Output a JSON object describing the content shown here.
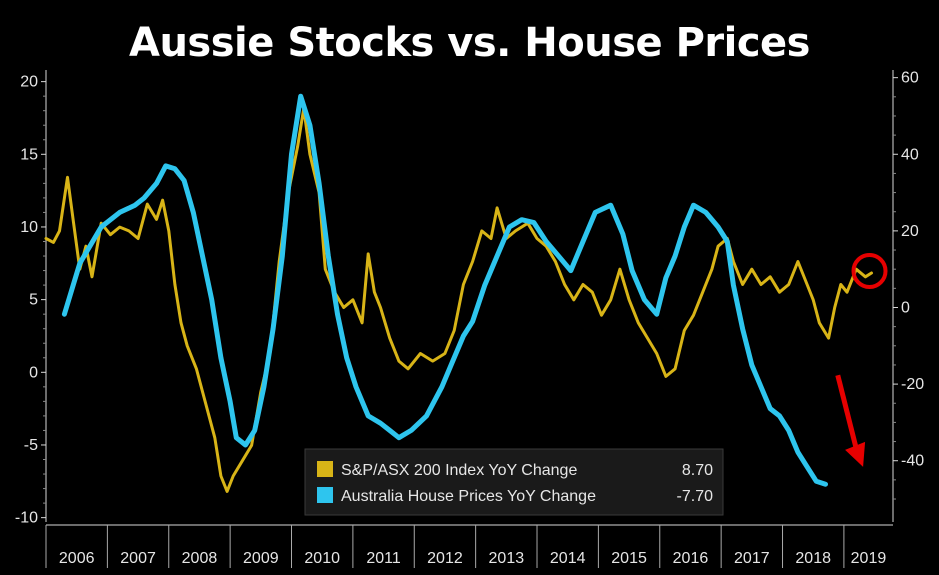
{
  "chart_data": {
    "type": "line",
    "title": "Aussie Stocks vs. House Prices",
    "x_ticks": [
      "2006",
      "2007",
      "2008",
      "2009",
      "2010",
      "2011",
      "2012",
      "2013",
      "2014",
      "2015",
      "2016",
      "2017",
      "2018",
      "2019"
    ],
    "xlim": [
      2006.0,
      2019.8
    ],
    "left_axis": {
      "ylim": [
        -10.3,
        20.8
      ],
      "ticks": [
        20,
        15,
        10,
        5,
        0,
        -5,
        -10
      ],
      "tick_labels": [
        "20",
        "15",
        "10",
        "5",
        "0",
        "-5",
        "-10"
      ]
    },
    "right_axis": {
      "ylim": [
        -56,
        62
      ],
      "ticks": [
        60,
        40,
        20,
        0,
        -20,
        -40
      ],
      "tick_labels": [
        "60",
        "40",
        "20",
        "0",
        "-20",
        "-40"
      ]
    },
    "series": [
      {
        "name": "S&P/ASX 200 Index YoY Change",
        "axis": "right",
        "color": "#d8b417",
        "last_value": "8.70",
        "points": [
          [
            2006.0,
            18
          ],
          [
            2006.12,
            17
          ],
          [
            2006.22,
            20
          ],
          [
            2006.35,
            34
          ],
          [
            2006.45,
            22
          ],
          [
            2006.55,
            10
          ],
          [
            2006.65,
            16
          ],
          [
            2006.75,
            8
          ],
          [
            2006.9,
            22
          ],
          [
            2007.05,
            19
          ],
          [
            2007.2,
            21
          ],
          [
            2007.35,
            20
          ],
          [
            2007.5,
            18
          ],
          [
            2007.65,
            27
          ],
          [
            2007.8,
            23
          ],
          [
            2007.9,
            28
          ],
          [
            2008.0,
            20
          ],
          [
            2008.1,
            6
          ],
          [
            2008.2,
            -4
          ],
          [
            2008.3,
            -10
          ],
          [
            2008.45,
            -16
          ],
          [
            2008.6,
            -25
          ],
          [
            2008.75,
            -34
          ],
          [
            2008.85,
            -44
          ],
          [
            2008.95,
            -48
          ],
          [
            2009.05,
            -44
          ],
          [
            2009.2,
            -40
          ],
          [
            2009.35,
            -36
          ],
          [
            2009.5,
            -22
          ],
          [
            2009.65,
            -12
          ],
          [
            2009.8,
            12
          ],
          [
            2009.95,
            30
          ],
          [
            2010.1,
            42
          ],
          [
            2010.2,
            52
          ],
          [
            2010.3,
            40
          ],
          [
            2010.45,
            30
          ],
          [
            2010.55,
            10
          ],
          [
            2010.7,
            4
          ],
          [
            2010.85,
            0
          ],
          [
            2011.0,
            2
          ],
          [
            2011.15,
            -4
          ],
          [
            2011.25,
            14
          ],
          [
            2011.35,
            4
          ],
          [
            2011.45,
            0
          ],
          [
            2011.6,
            -8
          ],
          [
            2011.75,
            -14
          ],
          [
            2011.9,
            -16
          ],
          [
            2012.1,
            -12
          ],
          [
            2012.3,
            -14
          ],
          [
            2012.5,
            -12
          ],
          [
            2012.65,
            -6
          ],
          [
            2012.8,
            6
          ],
          [
            2012.95,
            12
          ],
          [
            2013.1,
            20
          ],
          [
            2013.25,
            18
          ],
          [
            2013.35,
            26
          ],
          [
            2013.5,
            18
          ],
          [
            2013.65,
            20
          ],
          [
            2013.85,
            22
          ],
          [
            2014.0,
            18
          ],
          [
            2014.15,
            16
          ],
          [
            2014.3,
            12
          ],
          [
            2014.45,
            6
          ],
          [
            2014.6,
            2
          ],
          [
            2014.75,
            6
          ],
          [
            2014.9,
            4
          ],
          [
            2015.05,
            -2
          ],
          [
            2015.2,
            2
          ],
          [
            2015.35,
            10
          ],
          [
            2015.5,
            2
          ],
          [
            2015.65,
            -4
          ],
          [
            2015.8,
            -8
          ],
          [
            2015.95,
            -12
          ],
          [
            2016.1,
            -18
          ],
          [
            2016.25,
            -16
          ],
          [
            2016.4,
            -6
          ],
          [
            2016.55,
            -2
          ],
          [
            2016.7,
            4
          ],
          [
            2016.85,
            10
          ],
          [
            2016.95,
            16
          ],
          [
            2017.1,
            18
          ],
          [
            2017.2,
            12
          ],
          [
            2017.35,
            6
          ],
          [
            2017.5,
            10
          ],
          [
            2017.65,
            6
          ],
          [
            2017.8,
            8
          ],
          [
            2017.95,
            4
          ],
          [
            2018.1,
            6
          ],
          [
            2018.25,
            12
          ],
          [
            2018.4,
            6
          ],
          [
            2018.5,
            2
          ],
          [
            2018.6,
            -4
          ],
          [
            2018.75,
            -8
          ],
          [
            2018.85,
            0
          ],
          [
            2018.95,
            6
          ],
          [
            2019.05,
            4
          ],
          [
            2019.2,
            10
          ],
          [
            2019.35,
            8
          ],
          [
            2019.45,
            9
          ]
        ]
      },
      {
        "name": "Australia House Prices YoY Change",
        "axis": "left",
        "color": "#2ec5ee",
        "last_value": "-7.70",
        "points": [
          [
            2006.3,
            4
          ],
          [
            2006.55,
            7.5
          ],
          [
            2006.9,
            10
          ],
          [
            2007.2,
            11
          ],
          [
            2007.45,
            11.5
          ],
          [
            2007.6,
            12
          ],
          [
            2007.8,
            13
          ],
          [
            2007.95,
            14.2
          ],
          [
            2008.1,
            14.0
          ],
          [
            2008.25,
            13.2
          ],
          [
            2008.4,
            11
          ],
          [
            2008.55,
            8
          ],
          [
            2008.7,
            5
          ],
          [
            2008.85,
            1
          ],
          [
            2009.0,
            -2
          ],
          [
            2009.1,
            -4.5
          ],
          [
            2009.25,
            -5
          ],
          [
            2009.4,
            -4
          ],
          [
            2009.55,
            -1
          ],
          [
            2009.7,
            3
          ],
          [
            2009.85,
            8
          ],
          [
            2010.0,
            15
          ],
          [
            2010.15,
            19
          ],
          [
            2010.3,
            17
          ],
          [
            2010.45,
            13
          ],
          [
            2010.6,
            8
          ],
          [
            2010.75,
            4
          ],
          [
            2010.9,
            1
          ],
          [
            2011.05,
            -1
          ],
          [
            2011.25,
            -3
          ],
          [
            2011.45,
            -3.5
          ],
          [
            2011.6,
            -4
          ],
          [
            2011.75,
            -4.5
          ],
          [
            2011.95,
            -4
          ],
          [
            2012.2,
            -3
          ],
          [
            2012.45,
            -1
          ],
          [
            2012.6,
            0.5
          ],
          [
            2012.8,
            2.5
          ],
          [
            2012.95,
            3.5
          ],
          [
            2013.15,
            6
          ],
          [
            2013.35,
            8
          ],
          [
            2013.55,
            10
          ],
          [
            2013.75,
            10.5
          ],
          [
            2013.95,
            10.3
          ],
          [
            2014.15,
            9
          ],
          [
            2014.35,
            8
          ],
          [
            2014.55,
            7
          ],
          [
            2014.75,
            9
          ],
          [
            2014.95,
            11
          ],
          [
            2015.2,
            11.5
          ],
          [
            2015.4,
            9.5
          ],
          [
            2015.55,
            7
          ],
          [
            2015.75,
            5
          ],
          [
            2015.95,
            4
          ],
          [
            2016.1,
            6.5
          ],
          [
            2016.25,
            8
          ],
          [
            2016.4,
            10
          ],
          [
            2016.55,
            11.5
          ],
          [
            2016.75,
            11
          ],
          [
            2016.95,
            10
          ],
          [
            2017.1,
            9
          ],
          [
            2017.2,
            6
          ],
          [
            2017.35,
            3
          ],
          [
            2017.5,
            0.5
          ],
          [
            2017.65,
            -1
          ],
          [
            2017.8,
            -2.5
          ],
          [
            2017.95,
            -3
          ],
          [
            2018.1,
            -4
          ],
          [
            2018.25,
            -5.5
          ],
          [
            2018.4,
            -6.5
          ],
          [
            2018.55,
            -7.5
          ],
          [
            2018.7,
            -7.7
          ]
        ]
      }
    ],
    "legend": {
      "position": "bottom-center"
    },
    "annotations": {
      "circle": "2019 stock change",
      "arrow": "red arrow pointing down"
    },
    "grid": false
  }
}
